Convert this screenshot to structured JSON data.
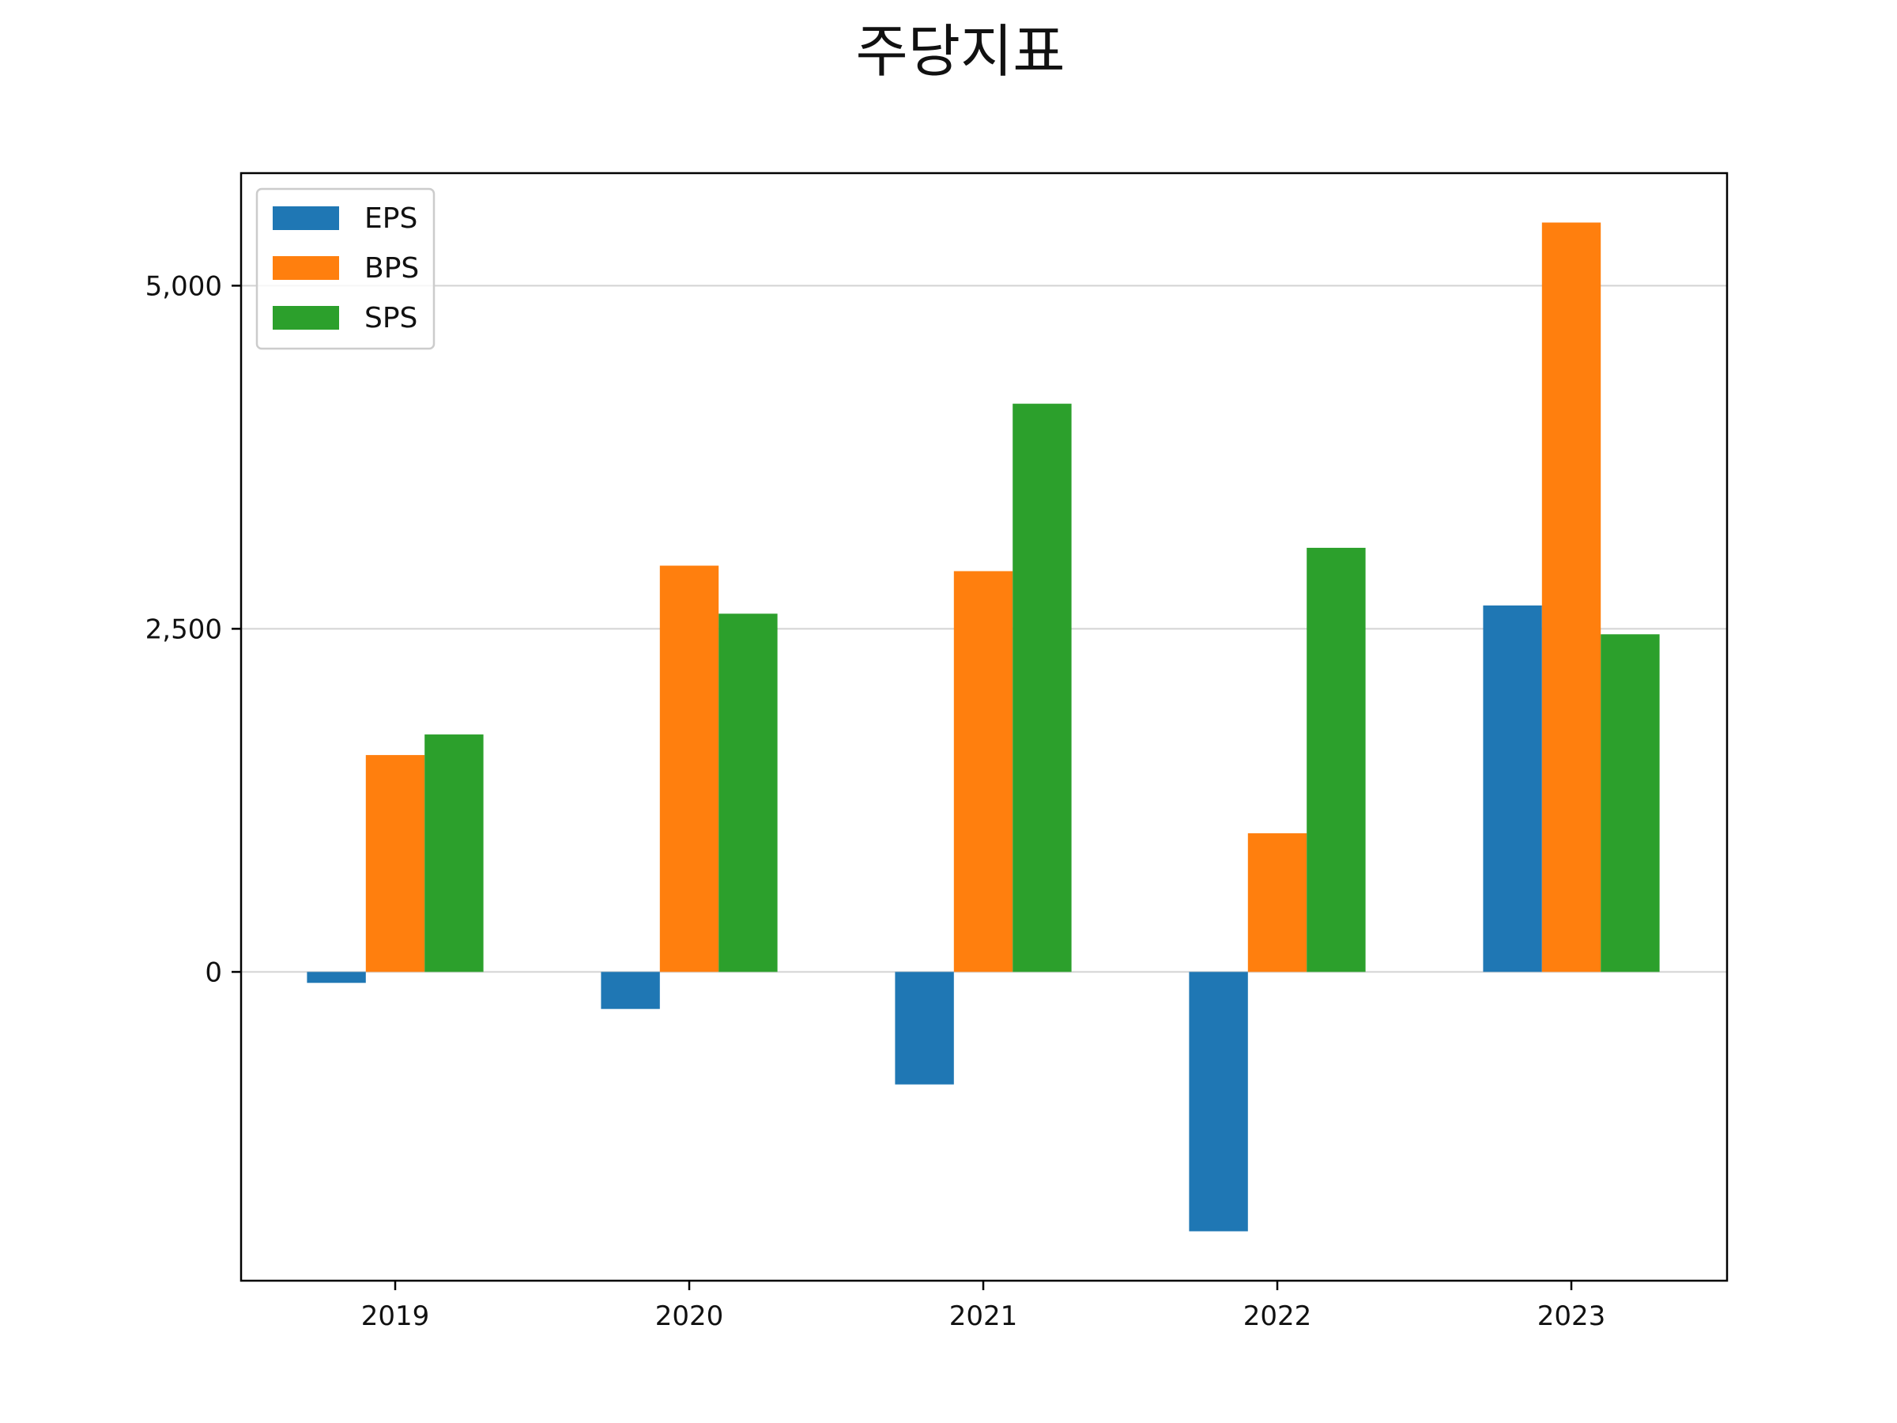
{
  "chart_data": {
    "type": "bar",
    "title": "주당지표",
    "xlabel": "",
    "ylabel": "",
    "categories": [
      "2019",
      "2020",
      "2021",
      "2022",
      "2023"
    ],
    "series": [
      {
        "name": "EPS",
        "color": "#1f77b4",
        "values": [
          -80,
          -270,
          -820,
          -1890,
          2670
        ]
      },
      {
        "name": "BPS",
        "color": "#ff7f0e",
        "values": [
          1580,
          2960,
          2920,
          1010,
          5460
        ]
      },
      {
        "name": "SPS",
        "color": "#2ca02c",
        "values": [
          1730,
          2610,
          4140,
          3090,
          2460
        ]
      }
    ],
    "yticks": [
      0,
      2500,
      5000
    ],
    "ytick_labels": [
      "0",
      "2,500",
      "5,000"
    ],
    "ylim": [
      -2250,
      5820
    ],
    "grid": "horizontal",
    "legend": "top-left"
  }
}
